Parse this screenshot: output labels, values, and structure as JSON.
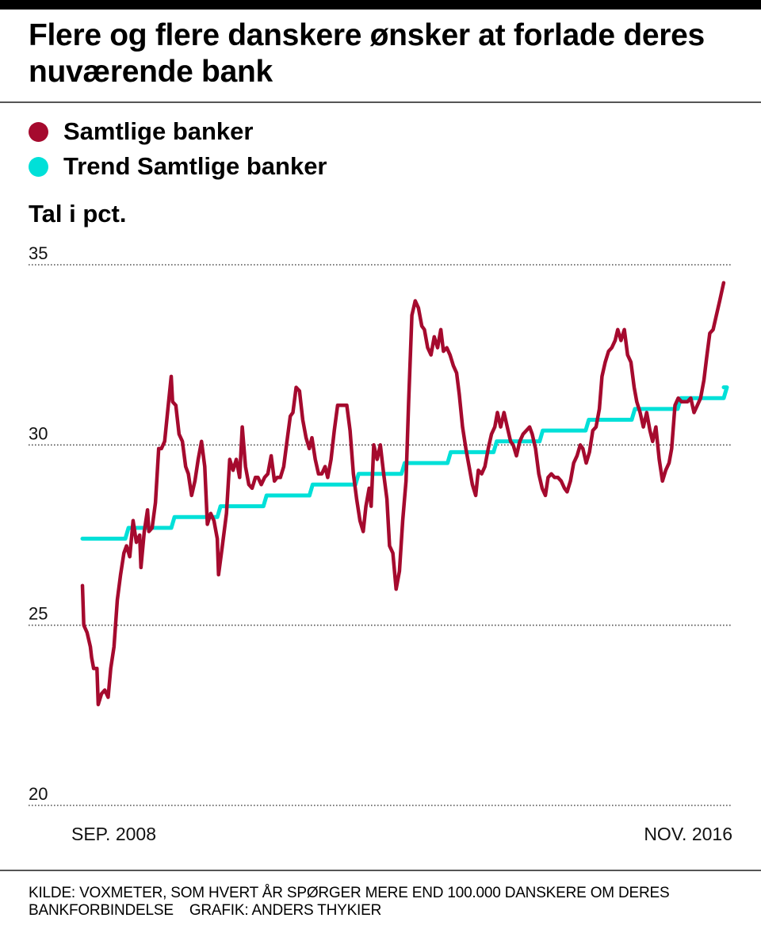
{
  "title": "Flere og flere danskere ønsker at forlade deres nuværende bank",
  "legend": [
    {
      "label": "Samtlige banker",
      "color": "#a50a2e"
    },
    {
      "label": "Trend Samtlige banker",
      "color": "#00e0d8"
    }
  ],
  "unit_label": "Tal i pct.",
  "footer": {
    "source": "KILDE: VOXMETER, SOM HVERT ÅR SPØRGER MERE END 100.000 DANSKERE OM DERES BANKFORBINDELSE",
    "credit": "GRAFIK: ANDERS THYKIER"
  },
  "chart_data": {
    "type": "line",
    "title": "Flere og flere danskere ønsker at forlade deres nuværende bank",
    "ylabel": "Tal i pct.",
    "xlabel": "",
    "ylim": [
      20,
      35
    ],
    "yticks": [
      35,
      30,
      25,
      20
    ],
    "grid": true,
    "grid_style": "dotted",
    "legend_position": "top-left",
    "x_unit": "months since SEP. 2008",
    "xlim": [
      0,
      98
    ],
    "xtick_labels": [
      {
        "x": 0,
        "label": "SEP. 2008"
      },
      {
        "x": 98,
        "label": "NOV. 2016"
      }
    ],
    "series": [
      {
        "name": "Samtlige banker",
        "color": "#a50a2e",
        "points": [
          [
            0,
            26.1
          ],
          [
            0.2,
            25.0
          ],
          [
            0.7,
            24.8
          ],
          [
            1.2,
            24.4
          ],
          [
            1.4,
            24.1
          ],
          [
            1.7,
            23.8
          ],
          [
            2.2,
            23.8
          ],
          [
            2.4,
            22.8
          ],
          [
            2.9,
            23.1
          ],
          [
            3.4,
            23.2
          ],
          [
            3.9,
            23.0
          ],
          [
            4.3,
            23.8
          ],
          [
            4.8,
            24.4
          ],
          [
            5.3,
            25.7
          ],
          [
            5.8,
            26.4
          ],
          [
            6.3,
            27.0
          ],
          [
            6.7,
            27.2
          ],
          [
            7.2,
            26.9
          ],
          [
            7.7,
            27.9
          ],
          [
            8.2,
            27.3
          ],
          [
            8.7,
            27.5
          ],
          [
            8.9,
            26.6
          ],
          [
            9.4,
            27.6
          ],
          [
            9.9,
            28.2
          ],
          [
            10.1,
            27.6
          ],
          [
            10.6,
            27.7
          ],
          [
            11.1,
            28.4
          ],
          [
            11.6,
            29.9
          ],
          [
            12.0,
            29.9
          ],
          [
            12.5,
            30.1
          ],
          [
            13.0,
            31.0
          ],
          [
            13.5,
            31.9
          ],
          [
            13.7,
            31.2
          ],
          [
            14.2,
            31.1
          ],
          [
            14.7,
            30.3
          ],
          [
            15.2,
            30.1
          ],
          [
            15.7,
            29.4
          ],
          [
            16.1,
            29.2
          ],
          [
            16.6,
            28.6
          ],
          [
            17.1,
            29.0
          ],
          [
            17.6,
            29.6
          ],
          [
            18.1,
            30.1
          ],
          [
            18.6,
            29.4
          ],
          [
            19.0,
            27.8
          ],
          [
            19.5,
            28.1
          ],
          [
            20.0,
            27.9
          ],
          [
            20.5,
            27.4
          ],
          [
            20.7,
            26.4
          ],
          [
            21.2,
            27.1
          ],
          [
            21.9,
            28.1
          ],
          [
            22.4,
            29.6
          ],
          [
            22.9,
            29.3
          ],
          [
            23.4,
            29.6
          ],
          [
            23.9,
            29.1
          ],
          [
            24.3,
            30.5
          ],
          [
            24.8,
            29.4
          ],
          [
            25.3,
            28.9
          ],
          [
            25.8,
            28.8
          ],
          [
            26.3,
            29.1
          ],
          [
            26.7,
            29.1
          ],
          [
            27.2,
            28.9
          ],
          [
            27.7,
            29.1
          ],
          [
            28.2,
            29.2
          ],
          [
            28.7,
            29.7
          ],
          [
            29.2,
            29.0
          ],
          [
            29.6,
            29.1
          ],
          [
            30.1,
            29.1
          ],
          [
            30.6,
            29.4
          ],
          [
            31.1,
            30.1
          ],
          [
            31.6,
            30.8
          ],
          [
            32.0,
            30.9
          ],
          [
            32.5,
            31.6
          ],
          [
            33.0,
            31.5
          ],
          [
            33.5,
            30.7
          ],
          [
            34.0,
            30.2
          ],
          [
            34.5,
            29.9
          ],
          [
            34.9,
            30.2
          ],
          [
            35.4,
            29.6
          ],
          [
            35.9,
            29.2
          ],
          [
            36.4,
            29.2
          ],
          [
            36.9,
            29.4
          ],
          [
            37.3,
            29.1
          ],
          [
            37.8,
            29.6
          ],
          [
            38.3,
            30.4
          ],
          [
            38.8,
            31.1
          ],
          [
            39.3,
            31.1
          ],
          [
            39.8,
            31.1
          ],
          [
            40.2,
            31.1
          ],
          [
            40.7,
            30.4
          ],
          [
            41.2,
            29.2
          ],
          [
            41.7,
            28.5
          ],
          [
            42.2,
            27.9
          ],
          [
            42.7,
            27.6
          ],
          [
            43.1,
            28.3
          ],
          [
            43.6,
            28.8
          ],
          [
            43.9,
            28.3
          ],
          [
            44.3,
            30.0
          ],
          [
            44.8,
            29.6
          ],
          [
            45.3,
            30.0
          ],
          [
            45.8,
            29.2
          ],
          [
            46.3,
            28.5
          ],
          [
            46.7,
            27.2
          ],
          [
            47.2,
            27.0
          ],
          [
            47.7,
            26.0
          ],
          [
            48.2,
            26.5
          ],
          [
            48.7,
            27.9
          ],
          [
            49.2,
            29.0
          ],
          [
            49.6,
            31.2
          ],
          [
            50.1,
            33.6
          ],
          [
            50.6,
            34.0
          ],
          [
            51.1,
            33.8
          ],
          [
            51.6,
            33.3
          ],
          [
            52.0,
            33.2
          ],
          [
            52.5,
            32.7
          ],
          [
            53.0,
            32.5
          ],
          [
            53.5,
            33.0
          ],
          [
            54.0,
            32.7
          ],
          [
            54.5,
            33.2
          ],
          [
            54.9,
            32.6
          ],
          [
            55.4,
            32.7
          ],
          [
            55.9,
            32.5
          ],
          [
            56.4,
            32.2
          ],
          [
            56.9,
            32.0
          ],
          [
            57.3,
            31.4
          ],
          [
            57.8,
            30.5
          ],
          [
            58.3,
            29.9
          ],
          [
            58.8,
            29.4
          ],
          [
            59.3,
            28.9
          ],
          [
            59.8,
            28.6
          ],
          [
            60.2,
            29.3
          ],
          [
            60.7,
            29.2
          ],
          [
            61.2,
            29.4
          ],
          [
            61.7,
            29.9
          ],
          [
            62.2,
            30.3
          ],
          [
            62.7,
            30.5
          ],
          [
            63.1,
            30.9
          ],
          [
            63.6,
            30.5
          ],
          [
            64.1,
            30.9
          ],
          [
            64.6,
            30.5
          ],
          [
            65.1,
            30.1
          ],
          [
            65.5,
            30.0
          ],
          [
            66.0,
            29.7
          ],
          [
            66.5,
            30.1
          ],
          [
            67.0,
            30.3
          ],
          [
            67.5,
            30.4
          ],
          [
            68.0,
            30.5
          ],
          [
            68.4,
            30.3
          ],
          [
            68.9,
            29.9
          ],
          [
            69.4,
            29.2
          ],
          [
            69.9,
            28.8
          ],
          [
            70.4,
            28.6
          ],
          [
            70.8,
            29.1
          ],
          [
            71.3,
            29.2
          ],
          [
            71.8,
            29.1
          ],
          [
            72.3,
            29.1
          ],
          [
            72.8,
            29.0
          ],
          [
            73.3,
            28.8
          ],
          [
            73.7,
            28.7
          ],
          [
            74.2,
            29.0
          ],
          [
            74.7,
            29.5
          ],
          [
            75.2,
            29.7
          ],
          [
            75.7,
            30.0
          ],
          [
            76.1,
            29.9
          ],
          [
            76.6,
            29.5
          ],
          [
            77.1,
            29.8
          ],
          [
            77.6,
            30.4
          ],
          [
            78.1,
            30.5
          ],
          [
            78.6,
            31.0
          ],
          [
            79.0,
            31.9
          ],
          [
            79.5,
            32.3
          ],
          [
            80.0,
            32.6
          ],
          [
            80.5,
            32.7
          ],
          [
            81.0,
            32.9
          ],
          [
            81.4,
            33.2
          ],
          [
            81.9,
            32.9
          ],
          [
            82.4,
            33.2
          ],
          [
            82.9,
            32.5
          ],
          [
            83.4,
            32.3
          ],
          [
            83.9,
            31.6
          ],
          [
            84.3,
            31.2
          ],
          [
            84.8,
            30.9
          ],
          [
            85.3,
            30.5
          ],
          [
            85.8,
            30.9
          ],
          [
            86.3,
            30.4
          ],
          [
            86.7,
            30.1
          ],
          [
            87.2,
            30.5
          ],
          [
            87.7,
            29.6
          ],
          [
            88.2,
            29.0
          ],
          [
            88.7,
            29.3
          ],
          [
            89.2,
            29.5
          ],
          [
            89.6,
            29.9
          ],
          [
            90.1,
            31.1
          ],
          [
            90.6,
            31.3
          ],
          [
            91.1,
            31.2
          ],
          [
            91.6,
            31.2
          ],
          [
            92.0,
            31.2
          ],
          [
            92.5,
            31.3
          ],
          [
            93.0,
            30.9
          ],
          [
            93.5,
            31.1
          ],
          [
            94.0,
            31.3
          ],
          [
            94.5,
            31.8
          ],
          [
            94.9,
            32.4
          ],
          [
            95.4,
            33.1
          ],
          [
            95.9,
            33.2
          ],
          [
            96.4,
            33.6
          ],
          [
            96.9,
            34.0
          ],
          [
            97.5,
            34.5
          ]
        ]
      },
      {
        "name": "Trend Samtlige banker",
        "color": "#00e0d8",
        "points": [
          [
            0,
            27.4
          ],
          [
            98,
            31.6
          ]
        ],
        "style": "stepped"
      }
    ]
  }
}
